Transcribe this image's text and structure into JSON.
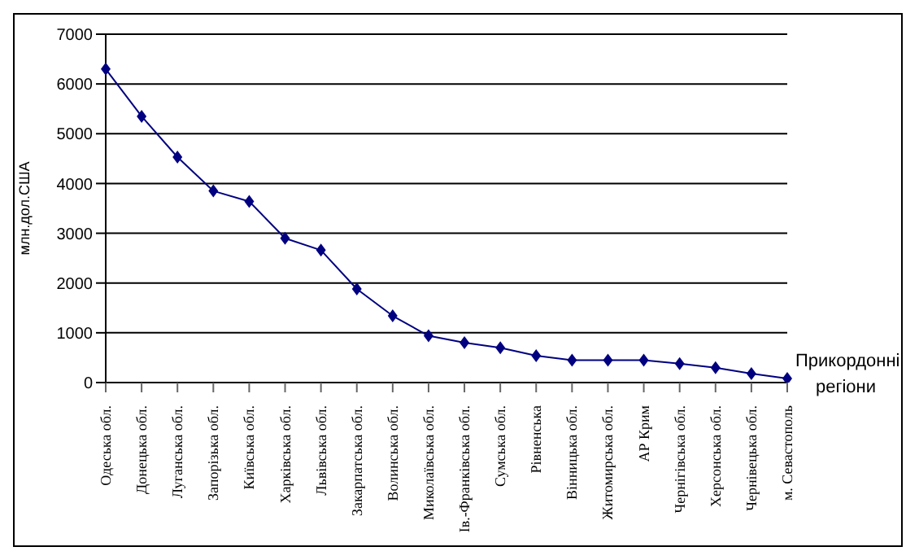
{
  "chart_data": {
    "type": "line",
    "xlabel": "Прикордонні регіони",
    "ylabel": "млн.дол.США",
    "categories": [
      "Одеська обл.",
      "Донецька обл.",
      "Луганська обл.",
      "Запорізька обл.",
      "Київська обл.",
      "Харківська обл.",
      "Львівська обл.",
      "Закарпатська обл.",
      "Волинська обл.",
      "Миколаївська обл.",
      "Ів.-Франківська обл.",
      "Сумська обл.",
      "Рівненська",
      "Вінницька обл.",
      "Житомирська обл.",
      "АР Крим",
      "Чернігівська обл.",
      "Херсонська обл.",
      "Чернівецька обл.",
      "м. Севастополь"
    ],
    "series": [
      {
        "color": "#000080",
        "values": [
          6300,
          5350,
          4530,
          3850,
          3640,
          2900,
          2660,
          1880,
          1340,
          940,
          800,
          700,
          540,
          450,
          450,
          450,
          380,
          300,
          180,
          80
        ]
      }
    ],
    "ylim": [
      0,
      7000
    ],
    "yticks": [
      0,
      1000,
      2000,
      3000,
      4000,
      5000,
      6000,
      7000
    ],
    "grid": "y",
    "marker": "diamond",
    "legend": false
  }
}
